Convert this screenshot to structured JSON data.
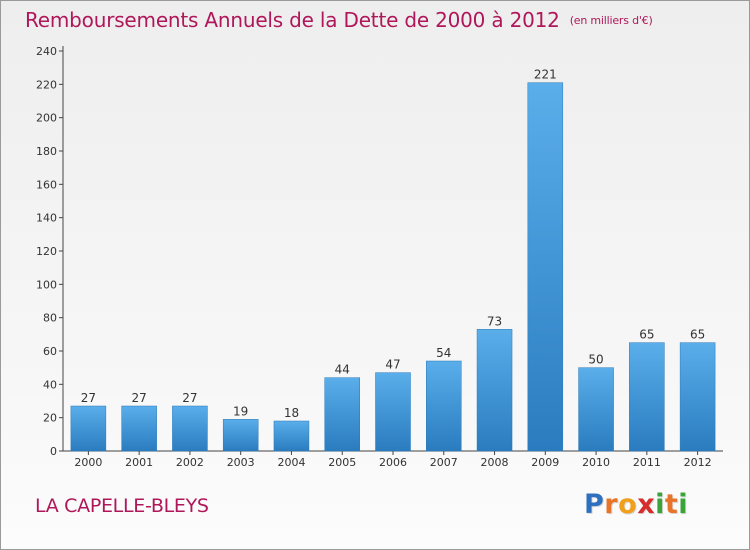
{
  "chart_data": {
    "type": "bar",
    "title": "Remboursements Annuels de la Dette de 2000 à 2012",
    "unit": "(en milliers d'€)",
    "categories": [
      "2000",
      "2001",
      "2002",
      "2003",
      "2004",
      "2005",
      "2006",
      "2007",
      "2008",
      "2009",
      "2010",
      "2011",
      "2012"
    ],
    "values": [
      27,
      27,
      27,
      19,
      18,
      44,
      47,
      54,
      73,
      221,
      50,
      65,
      65
    ],
    "ylim": [
      0,
      240
    ],
    "yticks": [
      0,
      20,
      40,
      60,
      80,
      100,
      120,
      140,
      160,
      180,
      200,
      220,
      240
    ],
    "grid": false,
    "legend": "none",
    "bar_color": "#3b94d8"
  },
  "location": "LA CAPELLE-BLEYS",
  "brand": {
    "name": "Proxiti",
    "letters": [
      "P",
      "r",
      "o",
      "x",
      "i",
      "t",
      "i"
    ],
    "letter_colors": [
      "#2f6fc0",
      "#e8742a",
      "#f0a01c",
      "#d62c2c",
      "#3aa33a",
      "#e8742a",
      "#3aa33a"
    ]
  }
}
